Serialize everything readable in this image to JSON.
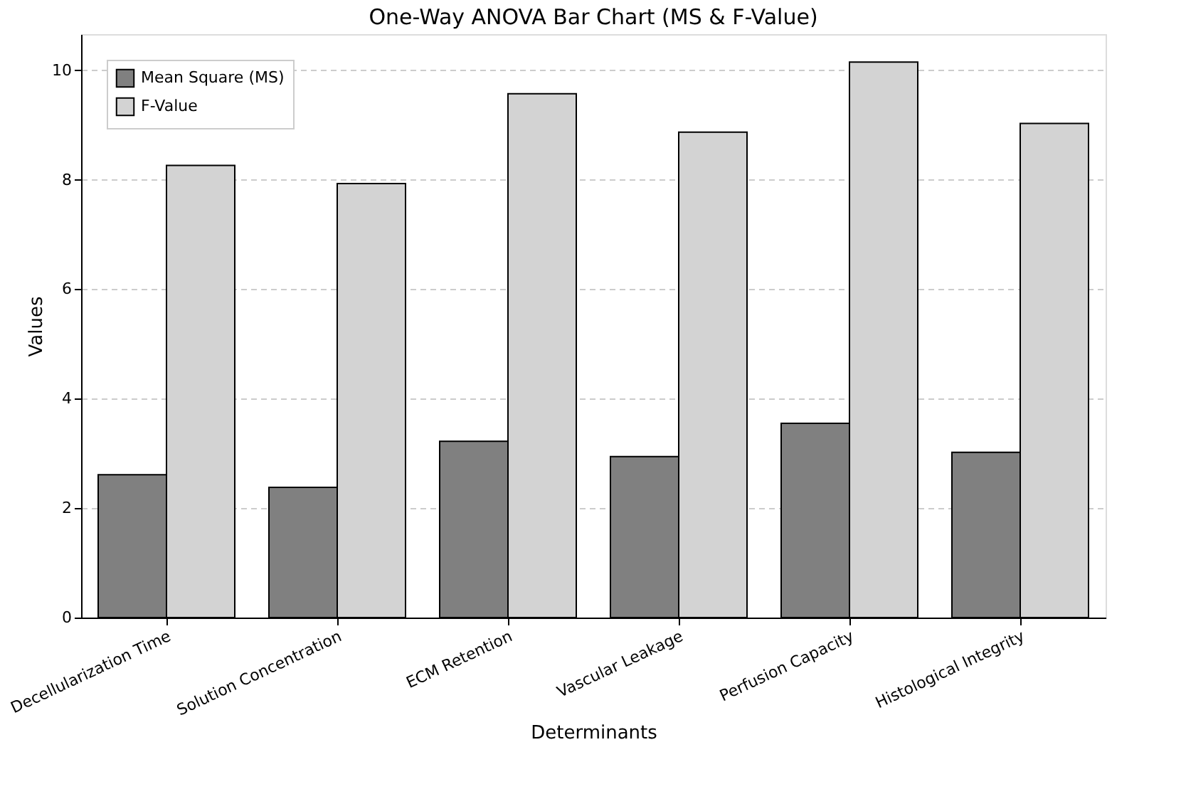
{
  "chart_data": {
    "type": "bar",
    "title": "One-Way ANOVA Bar Chart (MS & F-Value)",
    "xlabel": "Determinants",
    "ylabel": "Values",
    "categories": [
      "Decellularization Time",
      "Solution Concentration",
      "ECM Retention",
      "Vascular Leakage",
      "Perfusion Capacity",
      "Histological Integrity"
    ],
    "series": [
      {
        "name": "Mean Square (MS)",
        "color": "#808080",
        "values": [
          2.61,
          2.38,
          3.22,
          2.94,
          3.55,
          3.02
        ]
      },
      {
        "name": "F-Value",
        "color": "#d3d3d3",
        "values": [
          8.26,
          7.93,
          9.57,
          8.87,
          10.15,
          9.03
        ]
      }
    ],
    "ylim": [
      0,
      10.66
    ],
    "yticks": [
      0,
      2,
      4,
      6,
      8,
      10
    ],
    "grid": "y",
    "legend": "top left"
  }
}
